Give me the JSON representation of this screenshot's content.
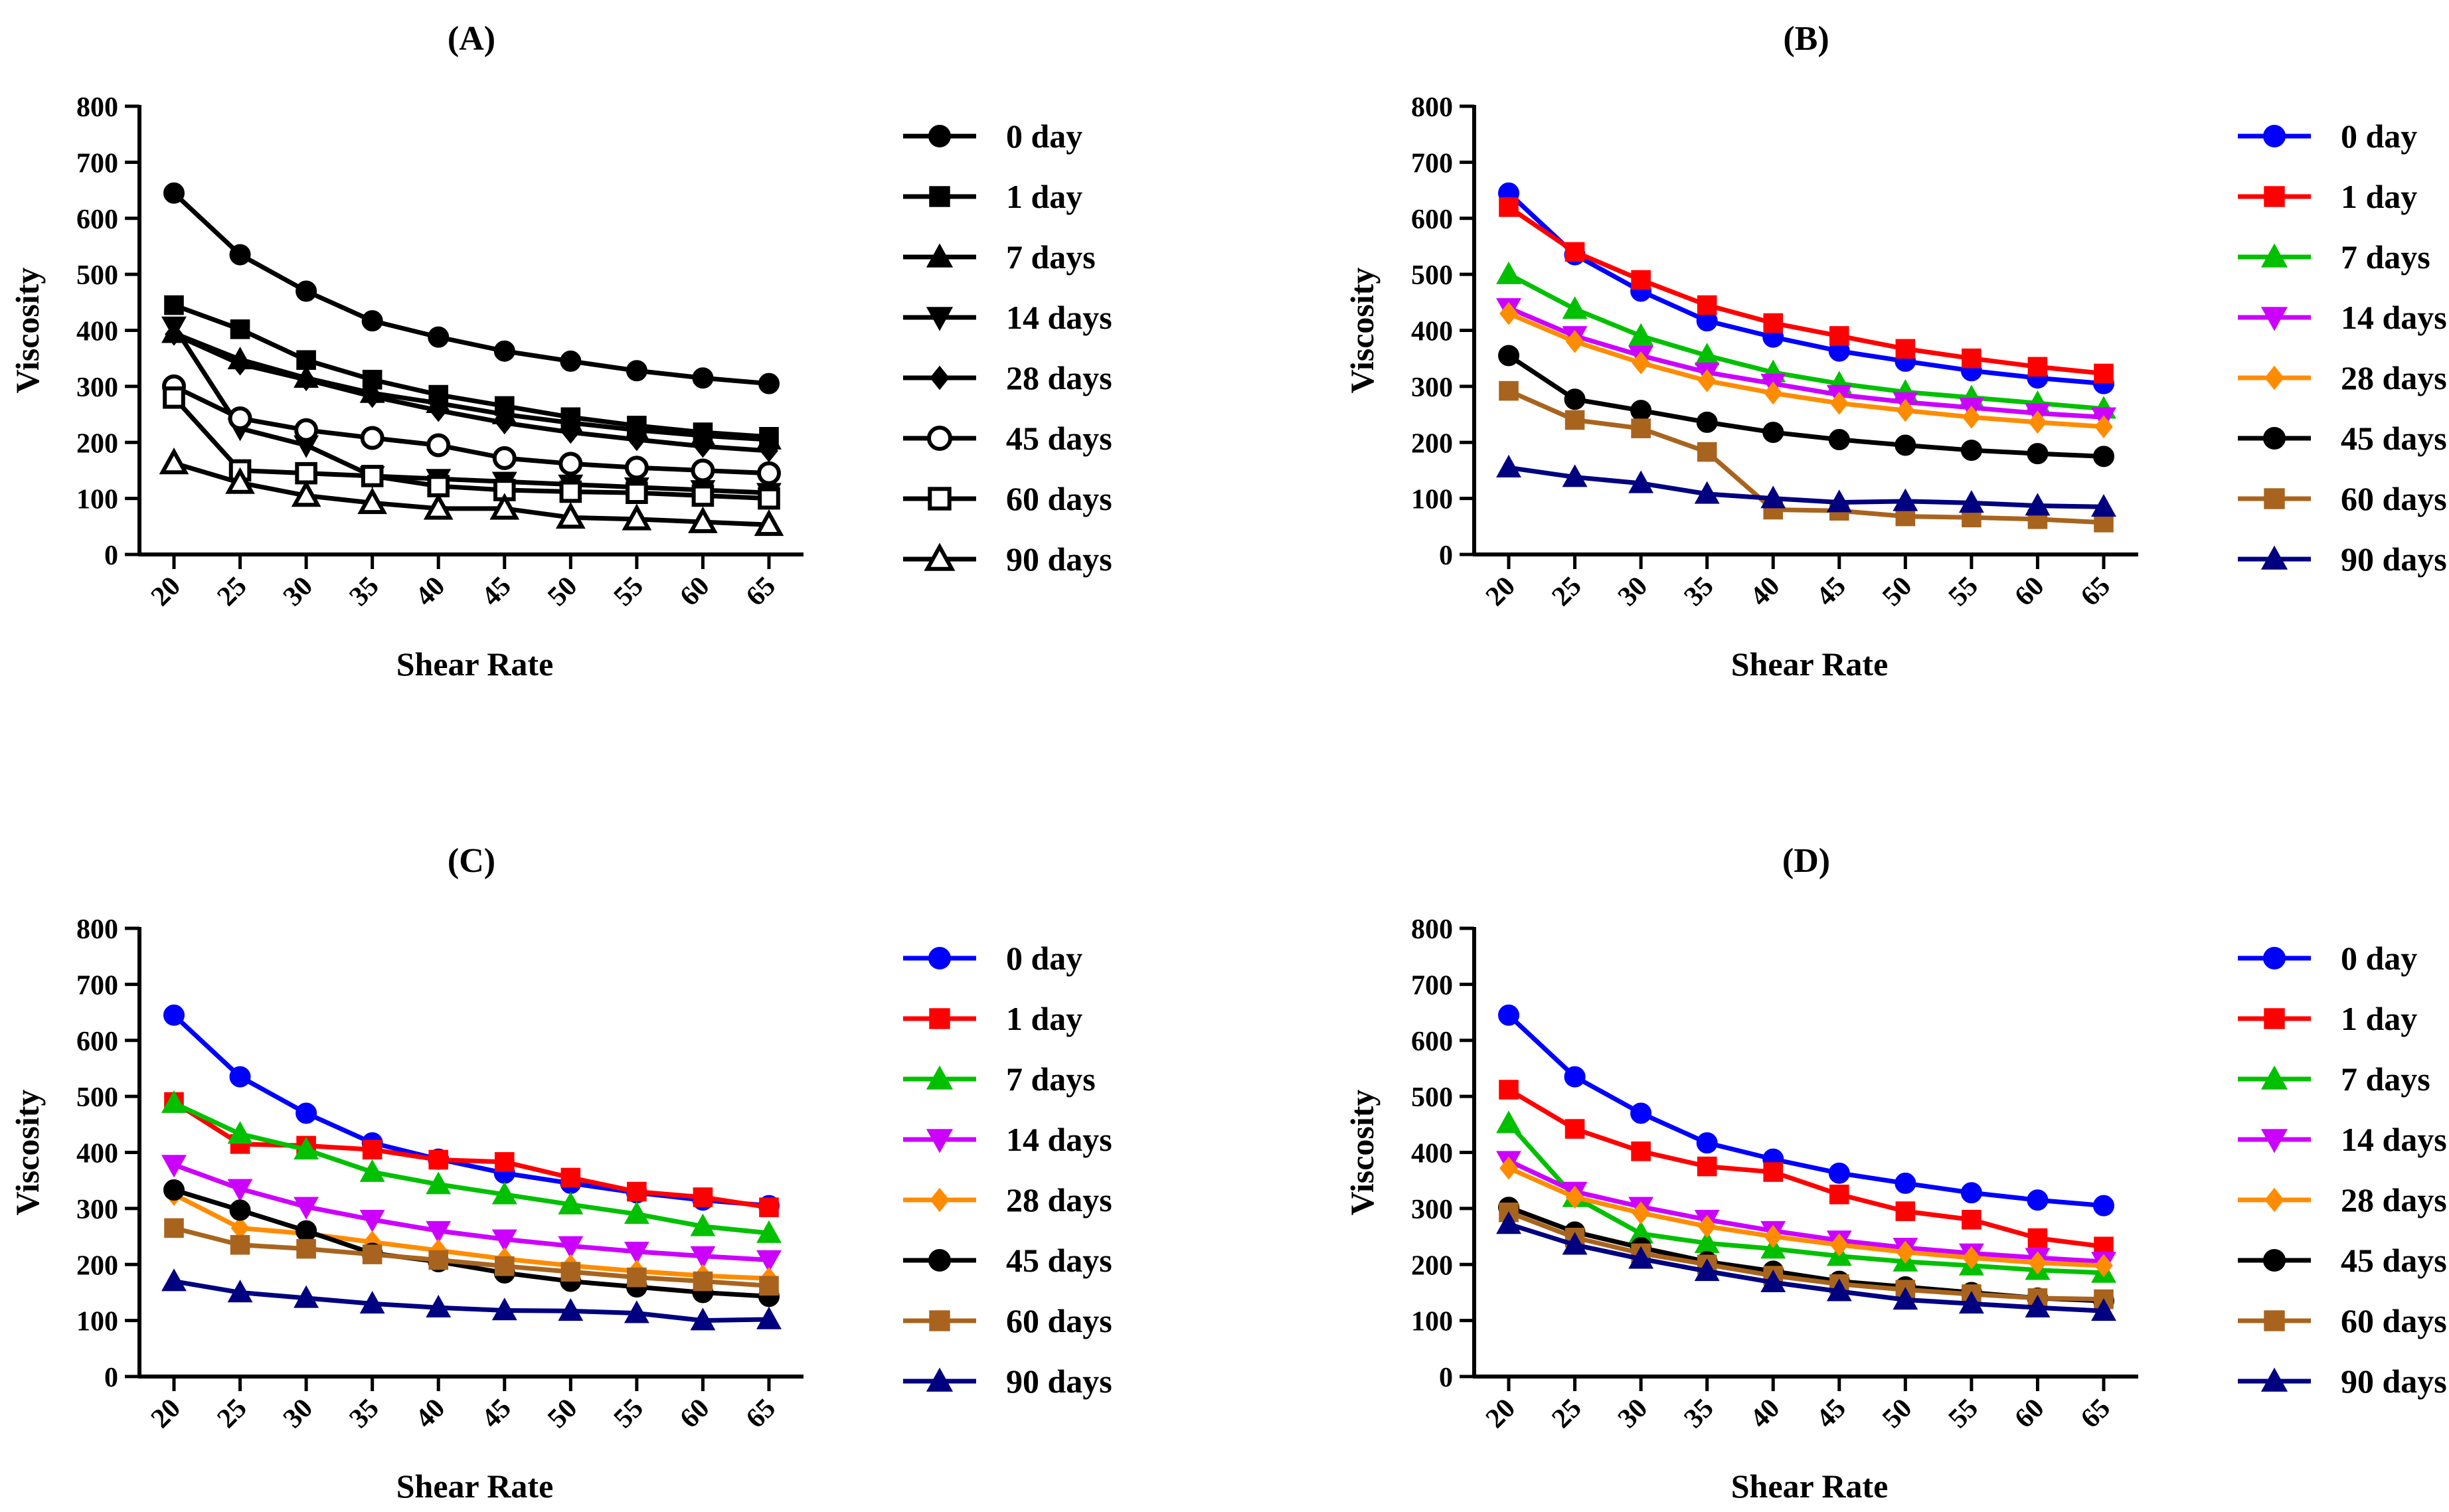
{
  "chart_data": [
    {
      "type": "line",
      "title": "(A)",
      "xlabel": "Shear Rate",
      "ylabel": "Viscosity",
      "x": [
        20,
        25,
        30,
        35,
        40,
        45,
        50,
        55,
        60,
        65
      ],
      "ylim": [
        0,
        800
      ],
      "yticks": [
        0,
        100,
        200,
        300,
        400,
        500,
        600,
        700,
        800
      ],
      "legend_position": "right",
      "series": [
        {
          "name": "0 day",
          "marker": "circle-filled",
          "color": "#000000",
          "values": [
            645,
            535,
            470,
            417,
            388,
            363,
            345,
            328,
            315,
            305
          ]
        },
        {
          "name": "1 day",
          "marker": "square-filled",
          "color": "#000000",
          "values": [
            445,
            402,
            347,
            312,
            285,
            265,
            245,
            230,
            218,
            210
          ]
        },
        {
          "name": "7 days",
          "marker": "triangle-up-filled",
          "color": "#000000",
          "values": [
            395,
            348,
            315,
            288,
            270,
            250,
            235,
            222,
            212,
            205
          ]
        },
        {
          "name": "14 days",
          "marker": "triangle-down-filled",
          "color": "#000000",
          "values": [
            407,
            225,
            195,
            140,
            135,
            130,
            125,
            120,
            115,
            110
          ]
        },
        {
          "name": "28 days",
          "marker": "diamond-filled",
          "color": "#000000",
          "values": [
            393,
            340,
            312,
            282,
            257,
            235,
            218,
            205,
            193,
            185
          ]
        },
        {
          "name": "45 days",
          "marker": "circle-open",
          "color": "#000000",
          "values": [
            300,
            243,
            222,
            208,
            195,
            172,
            162,
            155,
            150,
            145
          ]
        },
        {
          "name": "60 days",
          "marker": "square-open",
          "color": "#000000",
          "values": [
            280,
            150,
            145,
            140,
            122,
            115,
            112,
            110,
            105,
            100
          ]
        },
        {
          "name": "90 days",
          "marker": "triangle-up-open",
          "color": "#000000",
          "values": [
            163,
            128,
            105,
            92,
            82,
            82,
            66,
            63,
            58,
            53
          ]
        }
      ]
    },
    {
      "type": "line",
      "title": "(B)",
      "xlabel": "Shear Rate",
      "ylabel": "Viscosity",
      "x": [
        20,
        25,
        30,
        35,
        40,
        45,
        50,
        55,
        60,
        65
      ],
      "ylim": [
        0,
        800
      ],
      "yticks": [
        0,
        100,
        200,
        300,
        400,
        500,
        600,
        700,
        800
      ],
      "legend_position": "right",
      "series": [
        {
          "name": "0 day",
          "marker": "circle",
          "color": "#0000ff",
          "values": [
            645,
            535,
            470,
            417,
            388,
            363,
            345,
            328,
            315,
            305
          ]
        },
        {
          "name": "1 day",
          "marker": "square",
          "color": "#ff0000",
          "values": [
            620,
            540,
            490,
            445,
            413,
            390,
            367,
            350,
            335,
            323
          ]
        },
        {
          "name": "7 days",
          "marker": "triangle-up",
          "color": "#00c000",
          "values": [
            500,
            438,
            390,
            355,
            325,
            305,
            290,
            280,
            270,
            260
          ]
        },
        {
          "name": "14 days",
          "marker": "triangle-down",
          "color": "#cc00ff",
          "values": [
            440,
            390,
            355,
            325,
            305,
            285,
            272,
            262,
            252,
            245
          ]
        },
        {
          "name": "28 days",
          "marker": "diamond",
          "color": "#ff8c00",
          "values": [
            430,
            380,
            342,
            310,
            288,
            270,
            257,
            245,
            236,
            228
          ]
        },
        {
          "name": "45 days",
          "marker": "circle",
          "color": "#000000",
          "values": [
            355,
            277,
            257,
            236,
            218,
            205,
            195,
            186,
            180,
            175
          ]
        },
        {
          "name": "60 days",
          "marker": "square",
          "color": "#a8641e",
          "values": [
            292,
            240,
            225,
            183,
            80,
            78,
            68,
            66,
            63,
            57
          ]
        },
        {
          "name": "90 days",
          "marker": "triangle-up",
          "color": "#000080",
          "values": [
            155,
            138,
            127,
            108,
            100,
            93,
            95,
            92,
            87,
            85
          ]
        }
      ]
    },
    {
      "type": "line",
      "title": "(C)",
      "xlabel": "Shear Rate",
      "ylabel": "Viscosity",
      "x": [
        20,
        25,
        30,
        35,
        40,
        45,
        50,
        55,
        60,
        65
      ],
      "ylim": [
        0,
        800
      ],
      "yticks": [
        0,
        100,
        200,
        300,
        400,
        500,
        600,
        700,
        800
      ],
      "legend_position": "right",
      "series": [
        {
          "name": "0 day",
          "marker": "circle",
          "color": "#0000ff",
          "values": [
            645,
            535,
            470,
            417,
            388,
            363,
            345,
            328,
            315,
            305
          ]
        },
        {
          "name": "1 day",
          "marker": "square",
          "color": "#ff0000",
          "values": [
            490,
            415,
            412,
            405,
            387,
            383,
            355,
            330,
            320,
            302
          ]
        },
        {
          "name": "7 days",
          "marker": "triangle-up",
          "color": "#00c000",
          "values": [
            488,
            433,
            405,
            365,
            343,
            325,
            307,
            290,
            268,
            256
          ]
        },
        {
          "name": "14 days",
          "marker": "triangle-down",
          "color": "#cc00ff",
          "values": [
            378,
            335,
            303,
            280,
            260,
            245,
            233,
            223,
            215,
            208
          ]
        },
        {
          "name": "28 days",
          "marker": "diamond",
          "color": "#ff8c00",
          "values": [
            325,
            265,
            255,
            240,
            225,
            210,
            198,
            188,
            180,
            175
          ]
        },
        {
          "name": "45 days",
          "marker": "circle",
          "color": "#000000",
          "values": [
            333,
            297,
            260,
            220,
            205,
            185,
            170,
            160,
            150,
            143
          ]
        },
        {
          "name": "60 days",
          "marker": "square",
          "color": "#a8641e",
          "values": [
            265,
            235,
            228,
            218,
            208,
            197,
            187,
            177,
            170,
            162
          ]
        },
        {
          "name": "90 days",
          "marker": "triangle-up",
          "color": "#000080",
          "values": [
            170,
            150,
            140,
            130,
            123,
            118,
            117,
            113,
            100,
            102
          ]
        }
      ]
    },
    {
      "type": "line",
      "title": "(D)",
      "xlabel": "Shear Rate",
      "ylabel": "Viscosity",
      "x": [
        20,
        25,
        30,
        35,
        40,
        45,
        50,
        55,
        60,
        65
      ],
      "ylim": [
        0,
        800
      ],
      "yticks": [
        0,
        100,
        200,
        300,
        400,
        500,
        600,
        700,
        800
      ],
      "legend_position": "right",
      "series": [
        {
          "name": "0 day",
          "marker": "circle",
          "color": "#0000ff",
          "values": [
            645,
            535,
            470,
            417,
            388,
            363,
            345,
            328,
            315,
            305
          ]
        },
        {
          "name": "1 day",
          "marker": "square",
          "color": "#ff0000",
          "values": [
            512,
            442,
            402,
            375,
            365,
            325,
            295,
            280,
            247,
            232
          ]
        },
        {
          "name": "7 days",
          "marker": "triangle-up",
          "color": "#00c000",
          "values": [
            452,
            320,
            255,
            238,
            228,
            215,
            205,
            198,
            190,
            185
          ]
        },
        {
          "name": "14 days",
          "marker": "triangle-down",
          "color": "#cc00ff",
          "values": [
            385,
            330,
            303,
            280,
            260,
            243,
            230,
            220,
            212,
            205
          ]
        },
        {
          "name": "28 days",
          "marker": "diamond",
          "color": "#ff8c00",
          "values": [
            372,
            320,
            292,
            268,
            250,
            235,
            222,
            212,
            203,
            198
          ]
        },
        {
          "name": "45 days",
          "marker": "circle",
          "color": "#000000",
          "values": [
            302,
            258,
            230,
            205,
            188,
            170,
            160,
            150,
            140,
            135
          ]
        },
        {
          "name": "60 days",
          "marker": "square",
          "color": "#a8641e",
          "values": [
            293,
            248,
            220,
            200,
            180,
            165,
            155,
            147,
            140,
            138
          ]
        },
        {
          "name": "90 days",
          "marker": "triangle-up",
          "color": "#000080",
          "values": [
            272,
            235,
            210,
            188,
            168,
            152,
            137,
            130,
            123,
            117
          ]
        }
      ]
    }
  ]
}
